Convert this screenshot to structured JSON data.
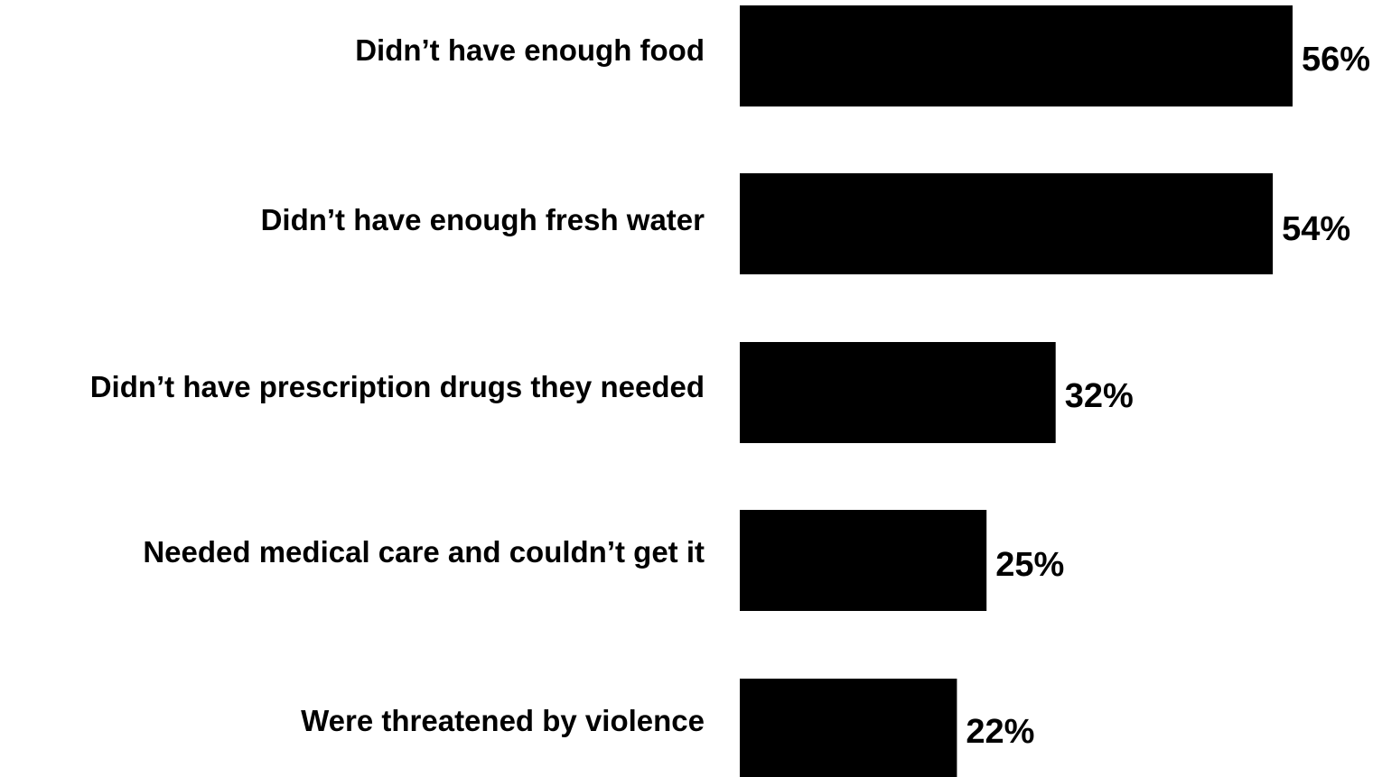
{
  "chart_data": {
    "type": "bar",
    "orientation": "horizontal",
    "categories": [
      "Didn’t have enough food",
      "Didn’t have enough fresh water",
      "Didn’t have prescription drugs they needed",
      "Needed medical care and couldn’t get it",
      "Were threatened by violence"
    ],
    "values": [
      56,
      54,
      32,
      25,
      22
    ],
    "value_labels": [
      "56%",
      "54%",
      "32%",
      "25%",
      "22%"
    ],
    "unit": "%",
    "xlim": [
      0,
      56
    ],
    "grid": false,
    "legend": "none",
    "bar_color": "#000000",
    "title": "",
    "xlabel": "",
    "ylabel": ""
  }
}
